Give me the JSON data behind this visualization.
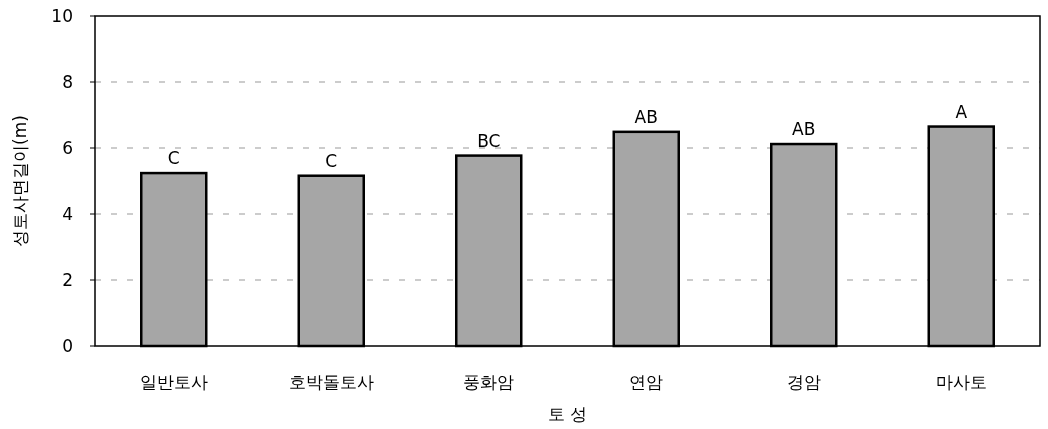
{
  "chart_data": {
    "type": "bar",
    "xlabel": "토 성",
    "ylabel": "성토사면길이(m)",
    "categories": [
      "일반토사",
      "호박돌토사",
      "풍화암",
      "연암",
      "경암",
      "마사토"
    ],
    "values": [
      5.24,
      5.16,
      5.77,
      6.49,
      6.12,
      6.65
    ],
    "color": "#a6a6a6",
    "ylim": [
      0,
      10
    ],
    "yticks": [
      0,
      2,
      4,
      6,
      8,
      10
    ],
    "grid": "y",
    "annotations": [
      {
        "text": "C",
        "x": "일반토사",
        "y": 5.24
      },
      {
        "text": "C",
        "x": "호박돌토사",
        "y": 5.16
      },
      {
        "text": "BC",
        "x": "풍화암",
        "y": 5.77
      },
      {
        "text": "AB",
        "x": "연암",
        "y": 6.49
      },
      {
        "text": "AB",
        "x": "경암",
        "y": 6.12
      },
      {
        "text": "A",
        "x": "마사토",
        "y": 6.65
      }
    ]
  }
}
